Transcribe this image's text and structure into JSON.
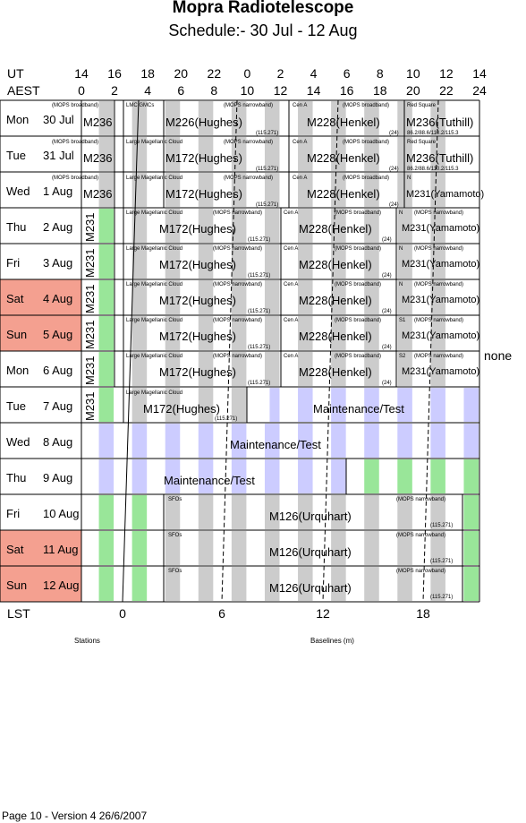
{
  "title": "Mopra Radiotelescope",
  "subtitle": "Schedule:- 30 Jul - 12 Aug",
  "axes": {
    "ut_label": "UT",
    "aest_label": "AEST",
    "ut_ticks": [
      "14",
      "16",
      "18",
      "20",
      "22",
      "0",
      "2",
      "4",
      "6",
      "8",
      "10",
      "12",
      "14"
    ],
    "aest_ticks": [
      "0",
      "2",
      "4",
      "6",
      "8",
      "10",
      "12",
      "14",
      "16",
      "18",
      "20",
      "22",
      "24"
    ],
    "lst_label": "LST",
    "lst_ticks": [
      "0",
      "6",
      "12",
      "18"
    ]
  },
  "days": [
    {
      "dow": "Mon",
      "date": "30 Jul",
      "weekend": false
    },
    {
      "dow": "Tue",
      "date": "31 Jul",
      "weekend": false
    },
    {
      "dow": "Wed",
      "date": "1  Aug",
      "weekend": false
    },
    {
      "dow": "Thu",
      "date": "2  Aug",
      "weekend": false
    },
    {
      "dow": "Fri",
      "date": "3  Aug",
      "weekend": false
    },
    {
      "dow": "Sat",
      "date": "4  Aug",
      "weekend": true
    },
    {
      "dow": "Sun",
      "date": "5  Aug",
      "weekend": true
    },
    {
      "dow": "Mon",
      "date": "6  Aug",
      "weekend": false
    },
    {
      "dow": "Tue",
      "date": "7  Aug",
      "weekend": false
    },
    {
      "dow": "Wed",
      "date": "8  Aug",
      "weekend": false
    },
    {
      "dow": "Thu",
      "date": "9  Aug",
      "weekend": false
    },
    {
      "dow": "Fri",
      "date": "10 Aug",
      "weekend": false
    },
    {
      "dow": "Sat",
      "date": "11 Aug",
      "weekend": true
    },
    {
      "dow": "Sun",
      "date": "12 Aug",
      "weekend": true
    }
  ],
  "projects": {
    "m236": "M236",
    "m226": "M226(Hughes)",
    "m228": "M228(Henkel)",
    "m236t": "M236(Tuthill)",
    "m172": "M172(Hughes)",
    "m231y": "M231(Yamamoto)",
    "m231": "M231",
    "maint": "Maintenance/Test",
    "m126": "M126(Urquhart)",
    "none": "none"
  },
  "notes": {
    "mops_broadband": "(MOPS broadband)",
    "mops_narrowband": "(MOPS narrowband)",
    "lmc_gmcs": "LMC GMCs",
    "lmc_cloud": "Large Magellanic Cloud",
    "cen_a": "Cen A",
    "red_square": "Red Square",
    "freq_115": "(115.271)",
    "freq_24": "(24)",
    "freqs_multi": "86.2/88.6/110.2/115.3",
    "n": "N",
    "s1": "S1",
    "s2": "S2",
    "sfos": "SFOs"
  },
  "bottom": {
    "stations": "Stations",
    "baselines": "Baselines (m)"
  },
  "footer": "Page 10 - Version 4  26/6/2007",
  "colors": {
    "weekend": "#f4a090",
    "grey_band": "#cccccc",
    "green_band": "#99e699",
    "maint_band": "#ccccff"
  }
}
